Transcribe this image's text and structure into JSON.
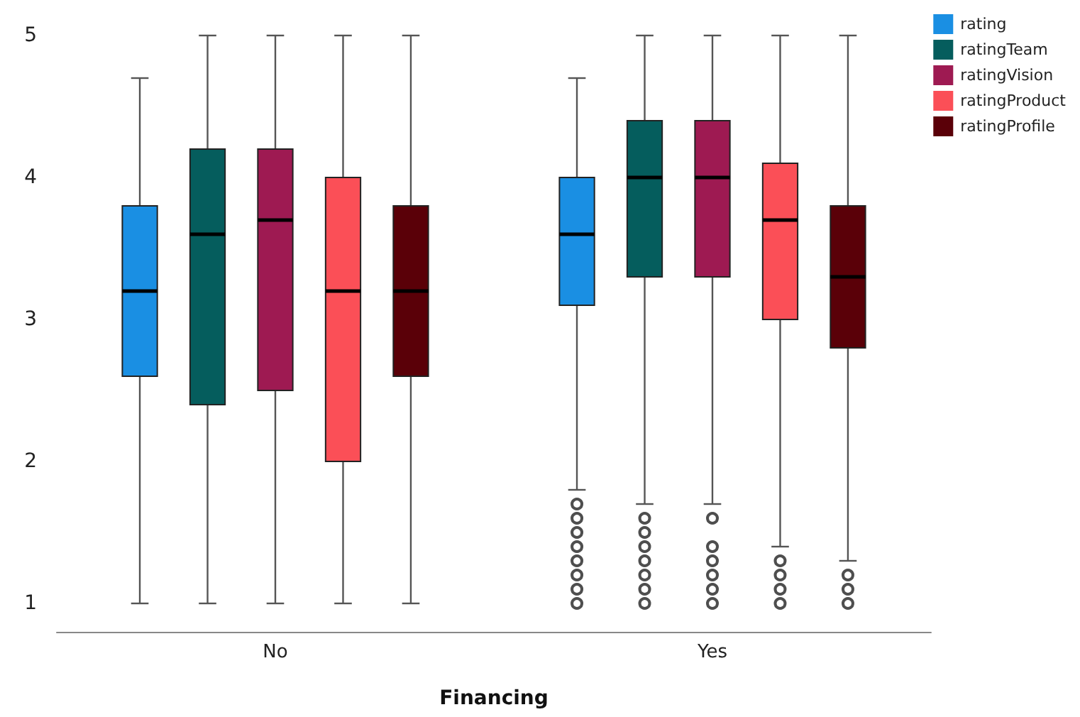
{
  "chart_data": {
    "type": "box",
    "xlabel": "Financing",
    "categories": [
      "No",
      "Yes"
    ],
    "ylim": [
      0.8,
      5
    ],
    "yticks": [
      1,
      2,
      3,
      4,
      5
    ],
    "grid": false,
    "legend": "top right",
    "series": [
      {
        "name": "rating",
        "color": "#1a8fe3",
        "boxes": [
          {
            "low": 1,
            "q1": 2.6,
            "median": 3.2,
            "q3": 3.8,
            "high": 4.7
          },
          {
            "low": 1.8,
            "q1": 3.1,
            "median": 3.6,
            "q3": 4.0,
            "high": 4.7,
            "outliers": [
              1.7,
              1.6,
              1.5,
              1.4,
              1.3,
              1.2,
              1.1,
              1.0
            ]
          }
        ]
      },
      {
        "name": "ratingTeam",
        "color": "#055d5d",
        "boxes": [
          {
            "low": 1,
            "q1": 2.4,
            "median": 3.6,
            "q3": 4.2,
            "high": 5
          },
          {
            "low": 1.7,
            "q1": 3.3,
            "median": 4.0,
            "q3": 4.4,
            "high": 5,
            "outliers": [
              1.6,
              1.5,
              1.4,
              1.3,
              1.2,
              1.1,
              1.0
            ]
          }
        ]
      },
      {
        "name": "ratingVision",
        "color": "#9e1a52",
        "boxes": [
          {
            "low": 1,
            "q1": 2.5,
            "median": 3.7,
            "q3": 4.2,
            "high": 5
          },
          {
            "low": 1.7,
            "q1": 3.3,
            "median": 4.0,
            "q3": 4.4,
            "high": 5,
            "outliers": [
              1.6,
              1.4,
              1.3,
              1.2,
              1.1,
              1.0
            ]
          }
        ]
      },
      {
        "name": "ratingProduct",
        "color": "#fb4f57",
        "boxes": [
          {
            "low": 1,
            "q1": 2.0,
            "median": 3.2,
            "q3": 4.0,
            "high": 5
          },
          {
            "low": 1.4,
            "q1": 3.0,
            "median": 3.7,
            "q3": 4.1,
            "high": 5,
            "outliers": [
              1.3,
              1.2,
              1.1,
              1.0
            ]
          }
        ]
      },
      {
        "name": "ratingProfile",
        "color": "#5a0008",
        "boxes": [
          {
            "low": 1,
            "q1": 2.6,
            "median": 3.2,
            "q3": 3.8,
            "high": 5
          },
          {
            "low": 1.3,
            "q1": 2.8,
            "median": 3.3,
            "q3": 3.8,
            "high": 5,
            "outliers": [
              1.2,
              1.1,
              1.0
            ]
          }
        ]
      }
    ]
  }
}
